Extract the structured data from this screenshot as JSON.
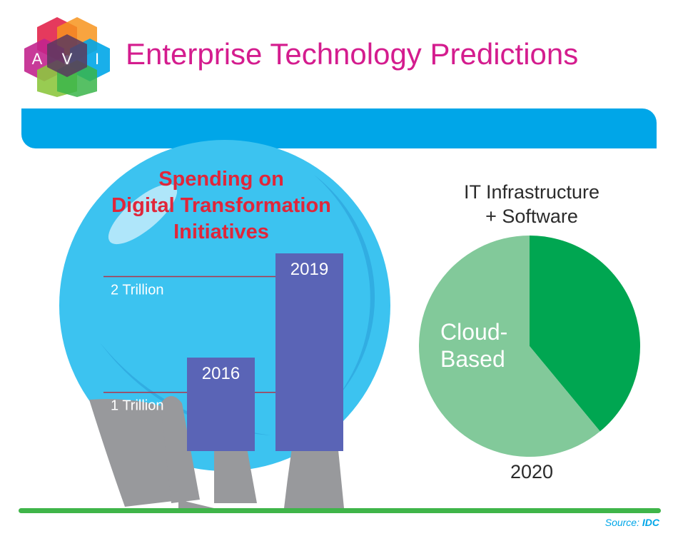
{
  "logo": {
    "letters": [
      "A",
      "V",
      "I"
    ]
  },
  "title": "Enterprise Technology Predictions",
  "colors": {
    "title": "#d41c8e",
    "band": "#00a6e8",
    "globe": "#3cc3f0",
    "bars": "#5a64b6",
    "subtitle_red": "#e0263a",
    "pie_dark": "#00a651",
    "pie_light": "#82c99a",
    "hand": "#98999c",
    "ground": "#3fb549"
  },
  "source": {
    "label": "Source:",
    "name": "IDC"
  },
  "chart_data": [
    {
      "type": "bar",
      "title": [
        "Spending on",
        "Digital Transformation",
        "Initiatives"
      ],
      "categories": [
        "2016",
        "2019"
      ],
      "values": [
        1.3,
        2.2
      ],
      "gridlines": [
        {
          "value": 1,
          "label": "1 Trillion"
        },
        {
          "value": 2,
          "label": "2 Trillion"
        }
      ],
      "ylim": [
        0,
        2.2
      ]
    },
    {
      "type": "pie",
      "title": [
        "IT Infrastructure",
        "+ Software"
      ],
      "xlabel": "2020",
      "slices": [
        {
          "label": "Cloud-Based",
          "value": 61,
          "color": "#82c99a"
        },
        {
          "label": "",
          "value": 39,
          "color": "#00a651"
        }
      ],
      "label_lines": [
        "Cloud-",
        "Based"
      ]
    }
  ]
}
